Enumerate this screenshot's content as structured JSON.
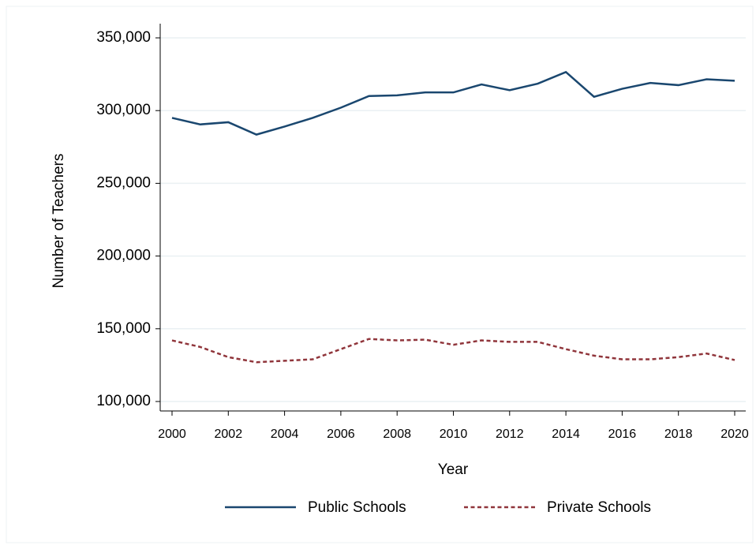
{
  "chart_data": {
    "type": "line",
    "x_label": "Year",
    "y_label": "Number of Teachers",
    "x": [
      2000,
      2001,
      2002,
      2003,
      2004,
      2005,
      2006,
      2007,
      2008,
      2009,
      2010,
      2011,
      2012,
      2013,
      2014,
      2015,
      2016,
      2017,
      2018,
      2019,
      2020
    ],
    "series": [
      {
        "name": "Public Schools",
        "color": "#1a476f",
        "dash": "solid",
        "values": [
          295000,
          290500,
          292000,
          283500,
          289000,
          295000,
          302000,
          310000,
          310500,
          312500,
          312500,
          318000,
          314000,
          318500,
          326500,
          309500,
          315000,
          319000,
          317500,
          321500,
          320500
        ]
      },
      {
        "name": "Private Schools",
        "color": "#90353b",
        "dash": "dashed",
        "values": [
          142000,
          137500,
          130500,
          127000,
          128000,
          129000,
          136000,
          143000,
          142000,
          142500,
          139000,
          142000,
          141000,
          141000,
          136000,
          131500,
          129000,
          129000,
          130500,
          133000,
          128500
        ]
      }
    ],
    "xlim": [
      2000,
      2020
    ],
    "xticks": [
      2000,
      2002,
      2004,
      2006,
      2008,
      2010,
      2012,
      2014,
      2016,
      2018,
      2020
    ],
    "ylim": [
      100000,
      350000
    ],
    "yticks": [
      {
        "value": 100000,
        "label": "100,000"
      },
      {
        "value": 150000,
        "label": "150,000"
      },
      {
        "value": 200000,
        "label": "200,000"
      },
      {
        "value": 250000,
        "label": "250,000"
      },
      {
        "value": 300000,
        "label": "300,000"
      },
      {
        "value": 350000,
        "label": "350,000"
      }
    ],
    "grid": true,
    "legend": "bottom"
  }
}
